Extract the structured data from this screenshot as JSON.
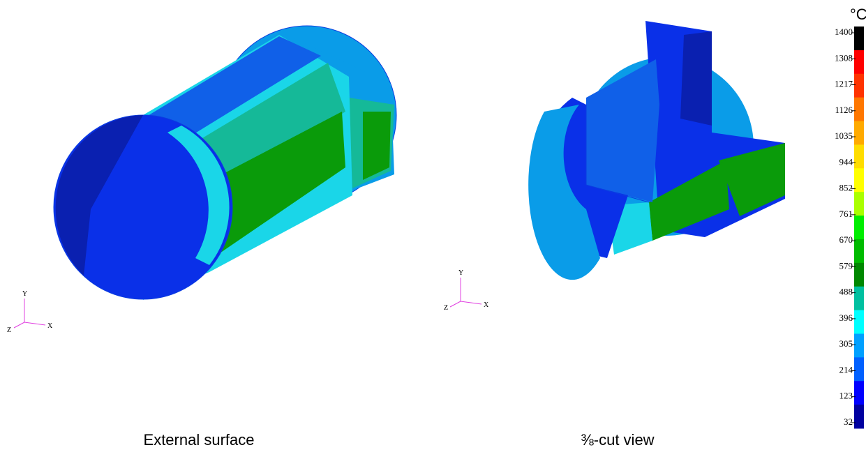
{
  "colorbar": {
    "unit": "°C",
    "labels": [
      "1400",
      "1308",
      "1217",
      "1126",
      "1035",
      "944",
      "852",
      "761",
      "670",
      "579",
      "488",
      "396",
      "305",
      "214",
      "123",
      "32"
    ]
  },
  "panels": [
    {
      "caption": "External surface",
      "triad": {
        "y": "Y",
        "z": "Z",
        "x": "X"
      }
    },
    {
      "caption": "⅜-cut view",
      "triad": {
        "y": "Y",
        "z": "Z",
        "x": "X"
      }
    }
  ]
}
